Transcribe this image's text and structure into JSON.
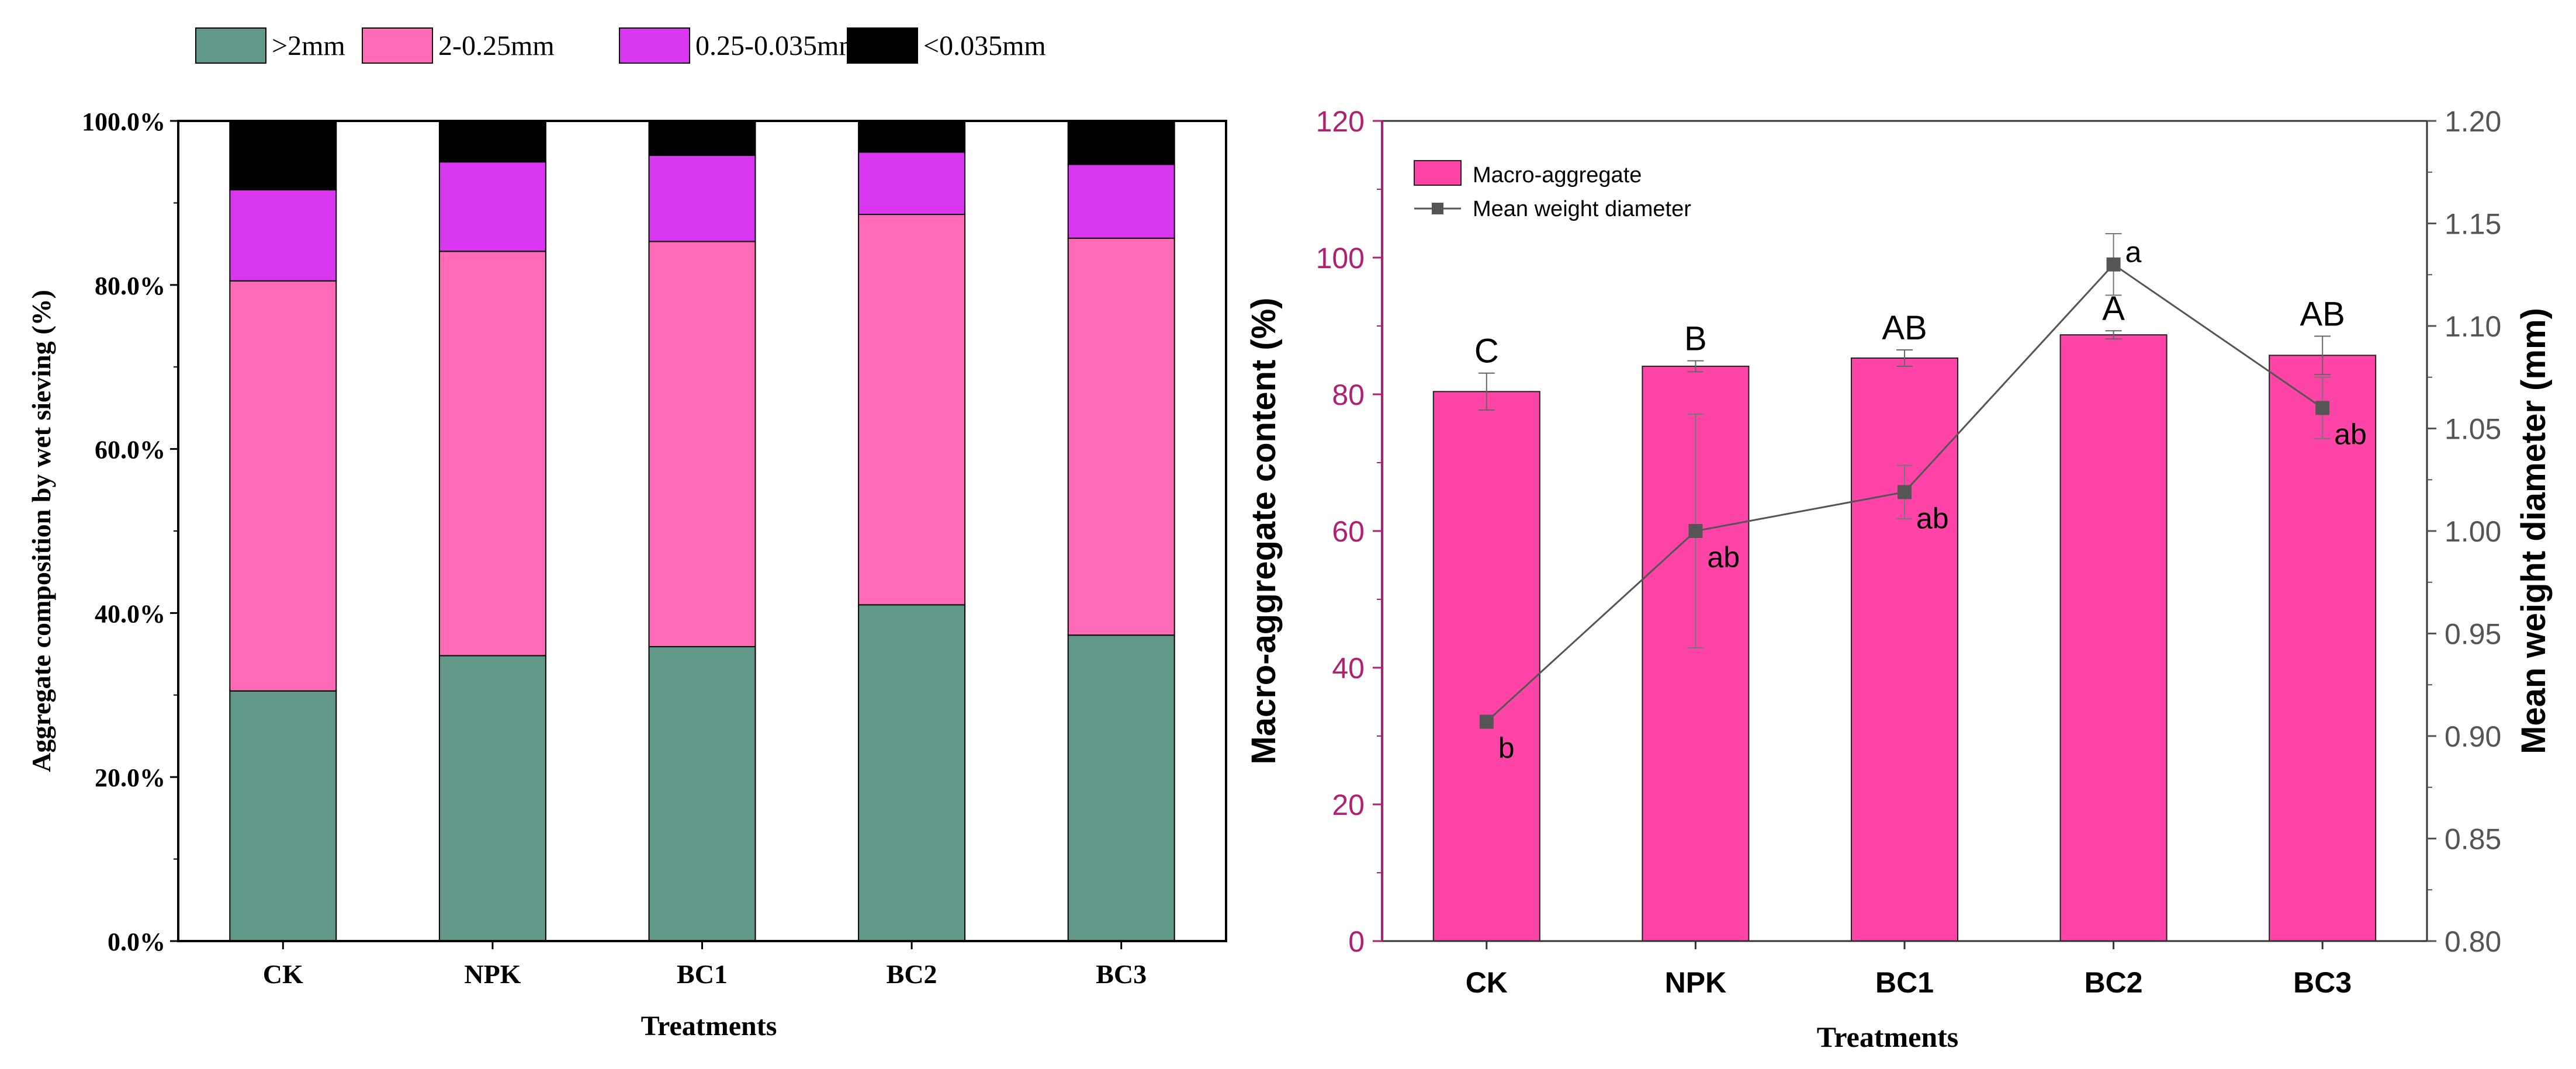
{
  "chart_data": [
    {
      "type": "bar",
      "stacked": true,
      "title": "",
      "xlabel": "Treatments",
      "ylabel": "Aggregate composition by wet sieving (%)",
      "ylim": [
        0,
        100
      ],
      "yticks": [
        "0.0%",
        "20.0%",
        "40.0%",
        "60.0%",
        "80.0%",
        "100.0%"
      ],
      "yticks_values": [
        0,
        20,
        40,
        60,
        80,
        100
      ],
      "categories": [
        "CK",
        "NPK",
        "BC1",
        "BC2",
        "BC3"
      ],
      "legend_position": "top",
      "series": [
        {
          "name": ">2mm",
          "color": "#62988a",
          "values": [
            30.5,
            34.8,
            35.9,
            41.0,
            37.3
          ]
        },
        {
          "name": "2-0.25mm",
          "color": "#ff6ab6",
          "values": [
            50.0,
            49.3,
            49.4,
            47.6,
            48.4
          ]
        },
        {
          "name": "0.25-0.035mm",
          "color": "#d936ef",
          "values": [
            11.1,
            10.9,
            10.5,
            7.6,
            9.0
          ]
        },
        {
          "name": "<0.035mm",
          "color": "#000000",
          "values": [
            8.4,
            5.0,
            4.2,
            3.8,
            5.3
          ]
        }
      ]
    },
    {
      "type": "bar",
      "dual_axis": true,
      "title": "",
      "xlabel": "Treatments",
      "ylabel": "Macro-aggregate content (%)",
      "ylabel_right": "Mean weight diameter (mm)",
      "ylim": [
        0,
        120
      ],
      "ylim_right": [
        0.8,
        1.2
      ],
      "yticks": [
        "0",
        "20",
        "40",
        "60",
        "80",
        "100",
        "120"
      ],
      "yticks_values": [
        0,
        20,
        40,
        60,
        80,
        100,
        120
      ],
      "yticks_right": [
        "0.80",
        "0.85",
        "0.90",
        "0.95",
        "1.00",
        "1.05",
        "1.10",
        "1.15",
        "1.20"
      ],
      "yticks_right_values": [
        0.8,
        0.85,
        0.9,
        0.95,
        1.0,
        1.05,
        1.1,
        1.15,
        1.2
      ],
      "categories": [
        "CK",
        "NPK",
        "BC1",
        "BC2",
        "BC3"
      ],
      "legend_position": "top-left",
      "axis_color_left": "#b0206e",
      "series": [
        {
          "name": "Macro-aggregate",
          "kind": "bar",
          "color": "#ff44a8",
          "values": [
            80.4,
            84.1,
            85.3,
            88.7,
            85.7
          ],
          "errors": [
            2.7,
            0.8,
            1.2,
            0.6,
            2.8
          ],
          "labels": [
            "C",
            "B",
            "AB",
            "A",
            "AB"
          ]
        },
        {
          "name": "Mean weight diameter",
          "kind": "line",
          "color": "#555555",
          "values": [
            0.907,
            1.0,
            1.019,
            1.13,
            1.06
          ],
          "errors": [
            0.0,
            0.057,
            0.013,
            0.015,
            0.015
          ],
          "labels": [
            "b",
            "ab",
            "ab",
            "a",
            "ab"
          ]
        }
      ]
    }
  ]
}
